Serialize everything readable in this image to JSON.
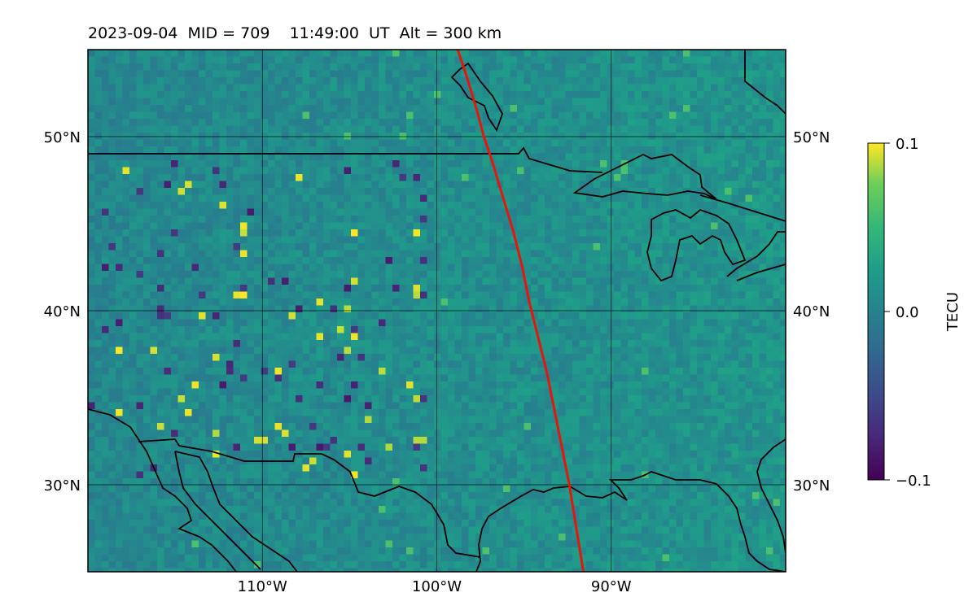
{
  "title": {
    "date": "2023-09-04",
    "mid": "MID = 709",
    "time": "11:49:00  UT",
    "alt": "Alt = 300 km"
  },
  "map": {
    "lon_range": [
      -120,
      -80
    ],
    "lat_range": [
      25,
      55
    ],
    "lon_ticks": [
      {
        "value": -110,
        "label": "110°W"
      },
      {
        "value": -100,
        "label": "100°W"
      },
      {
        "value": -90,
        "label": "90°W"
      }
    ],
    "lat_ticks": [
      {
        "value": 30,
        "label": "30°N"
      },
      {
        "value": 40,
        "label": "40°N"
      },
      {
        "value": 50,
        "label": "50°N"
      }
    ],
    "colormap": "viridis",
    "track_color": "#e3170a",
    "track": [
      [
        -98.8,
        55
      ],
      [
        -98.3,
        53.5
      ],
      [
        -97.7,
        51.5
      ],
      [
        -97.3,
        50
      ],
      [
        -96.8,
        48.5
      ],
      [
        -96.2,
        46.5
      ],
      [
        -95.6,
        44.5
      ],
      [
        -95.1,
        42.5
      ],
      [
        -94.7,
        40.5
      ],
      [
        -94.2,
        38.5
      ],
      [
        -93.7,
        36.5
      ],
      [
        -93.2,
        34
      ],
      [
        -92.8,
        32
      ],
      [
        -92.4,
        30
      ],
      [
        -92.0,
        27.5
      ],
      [
        -91.6,
        25
      ]
    ]
  },
  "colorbar": {
    "label": "TECU",
    "min": -0.1,
    "max": 0.1,
    "ticks": [
      {
        "value": 0.1,
        "label": "0.1"
      },
      {
        "value": 0.0,
        "label": "0.0"
      },
      {
        "value": -0.1,
        "label": "−0.1"
      }
    ]
  }
}
